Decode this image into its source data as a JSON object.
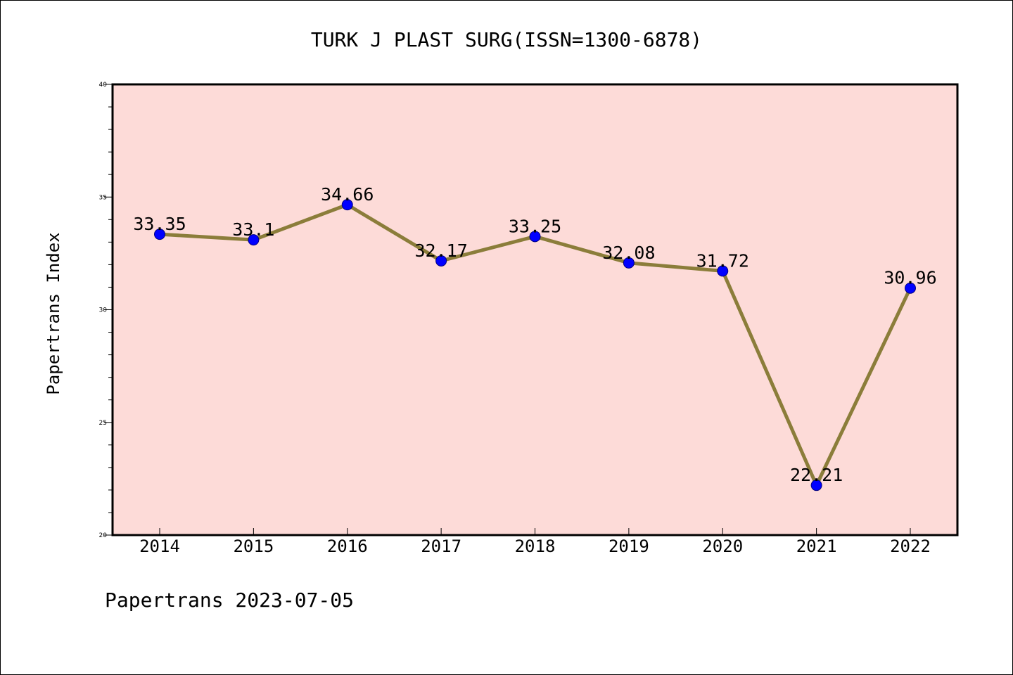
{
  "chart_data": {
    "type": "line",
    "title": "TURK J PLAST SURG(ISSN=1300-6878)",
    "xlabel": "",
    "ylabel": "Papertrans Index",
    "categories": [
      "2014",
      "2015",
      "2016",
      "2017",
      "2018",
      "2019",
      "2020",
      "2021",
      "2022"
    ],
    "values": [
      33.35,
      33.1,
      34.66,
      32.17,
      33.25,
      32.08,
      31.72,
      22.21,
      30.96
    ],
    "data_labels": [
      "33.35",
      "33.1",
      "34.66",
      "32.17",
      "33.25",
      "32.08",
      "31.72",
      "22.21",
      "30.96"
    ],
    "ylim": [
      20,
      40
    ],
    "yticks": [
      "20",
      "25",
      "30",
      "35",
      "40"
    ],
    "grid": false,
    "legend": "none",
    "colors": {
      "plot_background": "#fddbd8",
      "line": "#8b7d3a",
      "marker": "#0000ff",
      "marker_edge": "#000080"
    }
  },
  "footer": "Papertrans 2023-07-05"
}
